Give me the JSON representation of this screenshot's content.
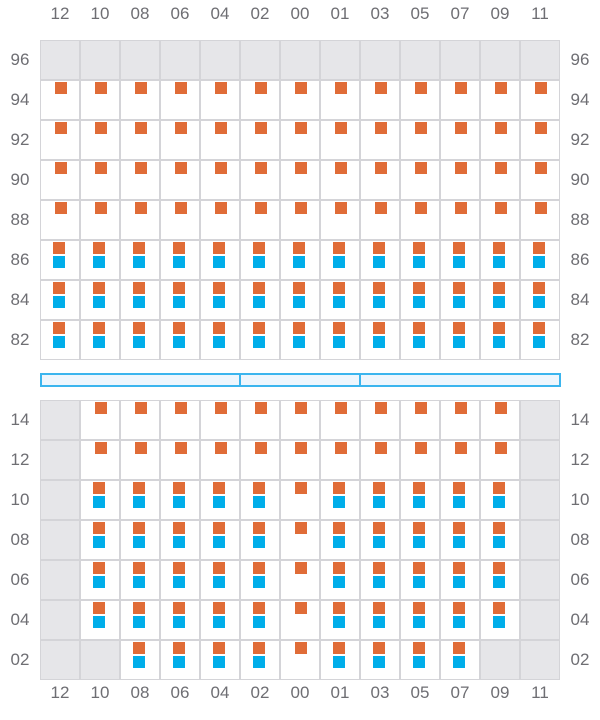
{
  "columns": [
    "12",
    "10",
    "08",
    "06",
    "04",
    "02",
    "00",
    "01",
    "03",
    "05",
    "07",
    "09",
    "11"
  ],
  "colors": {
    "orange": "#e06c37",
    "blue": "#00aeea",
    "unavailable": "#e6e6e9",
    "divider": "#3bb5ee"
  },
  "legend_codes": {
    "g": "unavailable",
    "o": "orange only",
    "b": "orange and blue"
  },
  "upper": {
    "rows": [
      {
        "label": "96",
        "cells": [
          "g",
          "g",
          "g",
          "g",
          "g",
          "g",
          "g",
          "g",
          "g",
          "g",
          "g",
          "g",
          "g"
        ]
      },
      {
        "label": "94",
        "cells": [
          "o",
          "o",
          "o",
          "o",
          "o",
          "o",
          "o",
          "o",
          "o",
          "o",
          "o",
          "o",
          "o"
        ]
      },
      {
        "label": "92",
        "cells": [
          "o",
          "o",
          "o",
          "o",
          "o",
          "o",
          "o",
          "o",
          "o",
          "o",
          "o",
          "o",
          "o"
        ]
      },
      {
        "label": "90",
        "cells": [
          "o",
          "o",
          "o",
          "o",
          "o",
          "o",
          "o",
          "o",
          "o",
          "o",
          "o",
          "o",
          "o"
        ]
      },
      {
        "label": "88",
        "cells": [
          "o",
          "o",
          "o",
          "o",
          "o",
          "o",
          "o",
          "o",
          "o",
          "o",
          "o",
          "o",
          "o"
        ]
      },
      {
        "label": "86",
        "cells": [
          "b",
          "b",
          "b",
          "b",
          "b",
          "b",
          "b",
          "b",
          "b",
          "b",
          "b",
          "b",
          "b"
        ]
      },
      {
        "label": "84",
        "cells": [
          "b",
          "b",
          "b",
          "b",
          "b",
          "b",
          "b",
          "b",
          "b",
          "b",
          "b",
          "b",
          "b"
        ]
      },
      {
        "label": "82",
        "cells": [
          "b",
          "b",
          "b",
          "b",
          "b",
          "b",
          "b",
          "b",
          "b",
          "b",
          "b",
          "b",
          "b"
        ]
      }
    ]
  },
  "lower": {
    "rows": [
      {
        "label": "14",
        "cells": [
          "g",
          "o",
          "o",
          "o",
          "o",
          "o",
          "o",
          "o",
          "o",
          "o",
          "o",
          "o",
          "g"
        ]
      },
      {
        "label": "12",
        "cells": [
          "g",
          "o",
          "o",
          "o",
          "o",
          "o",
          "o",
          "o",
          "o",
          "o",
          "o",
          "o",
          "g"
        ]
      },
      {
        "label": "10",
        "cells": [
          "g",
          "b",
          "b",
          "b",
          "b",
          "b",
          "o",
          "b",
          "b",
          "b",
          "b",
          "b",
          "g"
        ]
      },
      {
        "label": "08",
        "cells": [
          "g",
          "b",
          "b",
          "b",
          "b",
          "b",
          "o",
          "b",
          "b",
          "b",
          "b",
          "b",
          "g"
        ]
      },
      {
        "label": "06",
        "cells": [
          "g",
          "b",
          "b",
          "b",
          "b",
          "b",
          "o",
          "b",
          "b",
          "b",
          "b",
          "b",
          "g"
        ]
      },
      {
        "label": "04",
        "cells": [
          "g",
          "b",
          "b",
          "b",
          "b",
          "b",
          "o",
          "b",
          "b",
          "b",
          "b",
          "b",
          "g"
        ]
      },
      {
        "label": "02",
        "cells": [
          "g",
          "g",
          "b",
          "b",
          "b",
          "b",
          "o",
          "b",
          "b",
          "b",
          "b",
          "g",
          "g"
        ]
      }
    ]
  }
}
